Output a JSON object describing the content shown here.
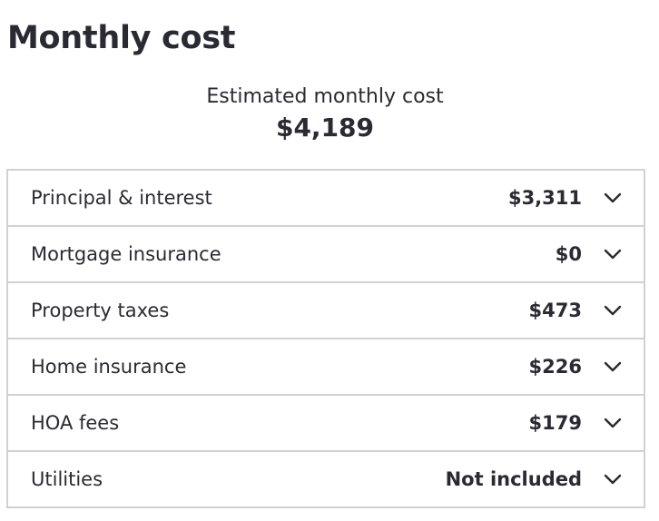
{
  "page": {
    "title": "Monthly cost"
  },
  "summary": {
    "label": "Estimated monthly cost",
    "value": "$4,189"
  },
  "rows": [
    {
      "label": "Principal & interest",
      "value": "$3,311",
      "icon": "chevron-down-icon"
    },
    {
      "label": "Mortgage insurance",
      "value": "$0",
      "icon": "chevron-down-icon"
    },
    {
      "label": "Property taxes",
      "value": "$473",
      "icon": "chevron-down-icon"
    },
    {
      "label": "Home insurance",
      "value": "$226",
      "icon": "chevron-down-icon"
    },
    {
      "label": "HOA fees",
      "value": "$179",
      "icon": "chevron-down-icon"
    },
    {
      "label": "Utilities",
      "value": "Not included",
      "icon": "chevron-down-icon"
    }
  ],
  "colors": {
    "text": "#2a2a33",
    "border": "#d1d1d5"
  }
}
